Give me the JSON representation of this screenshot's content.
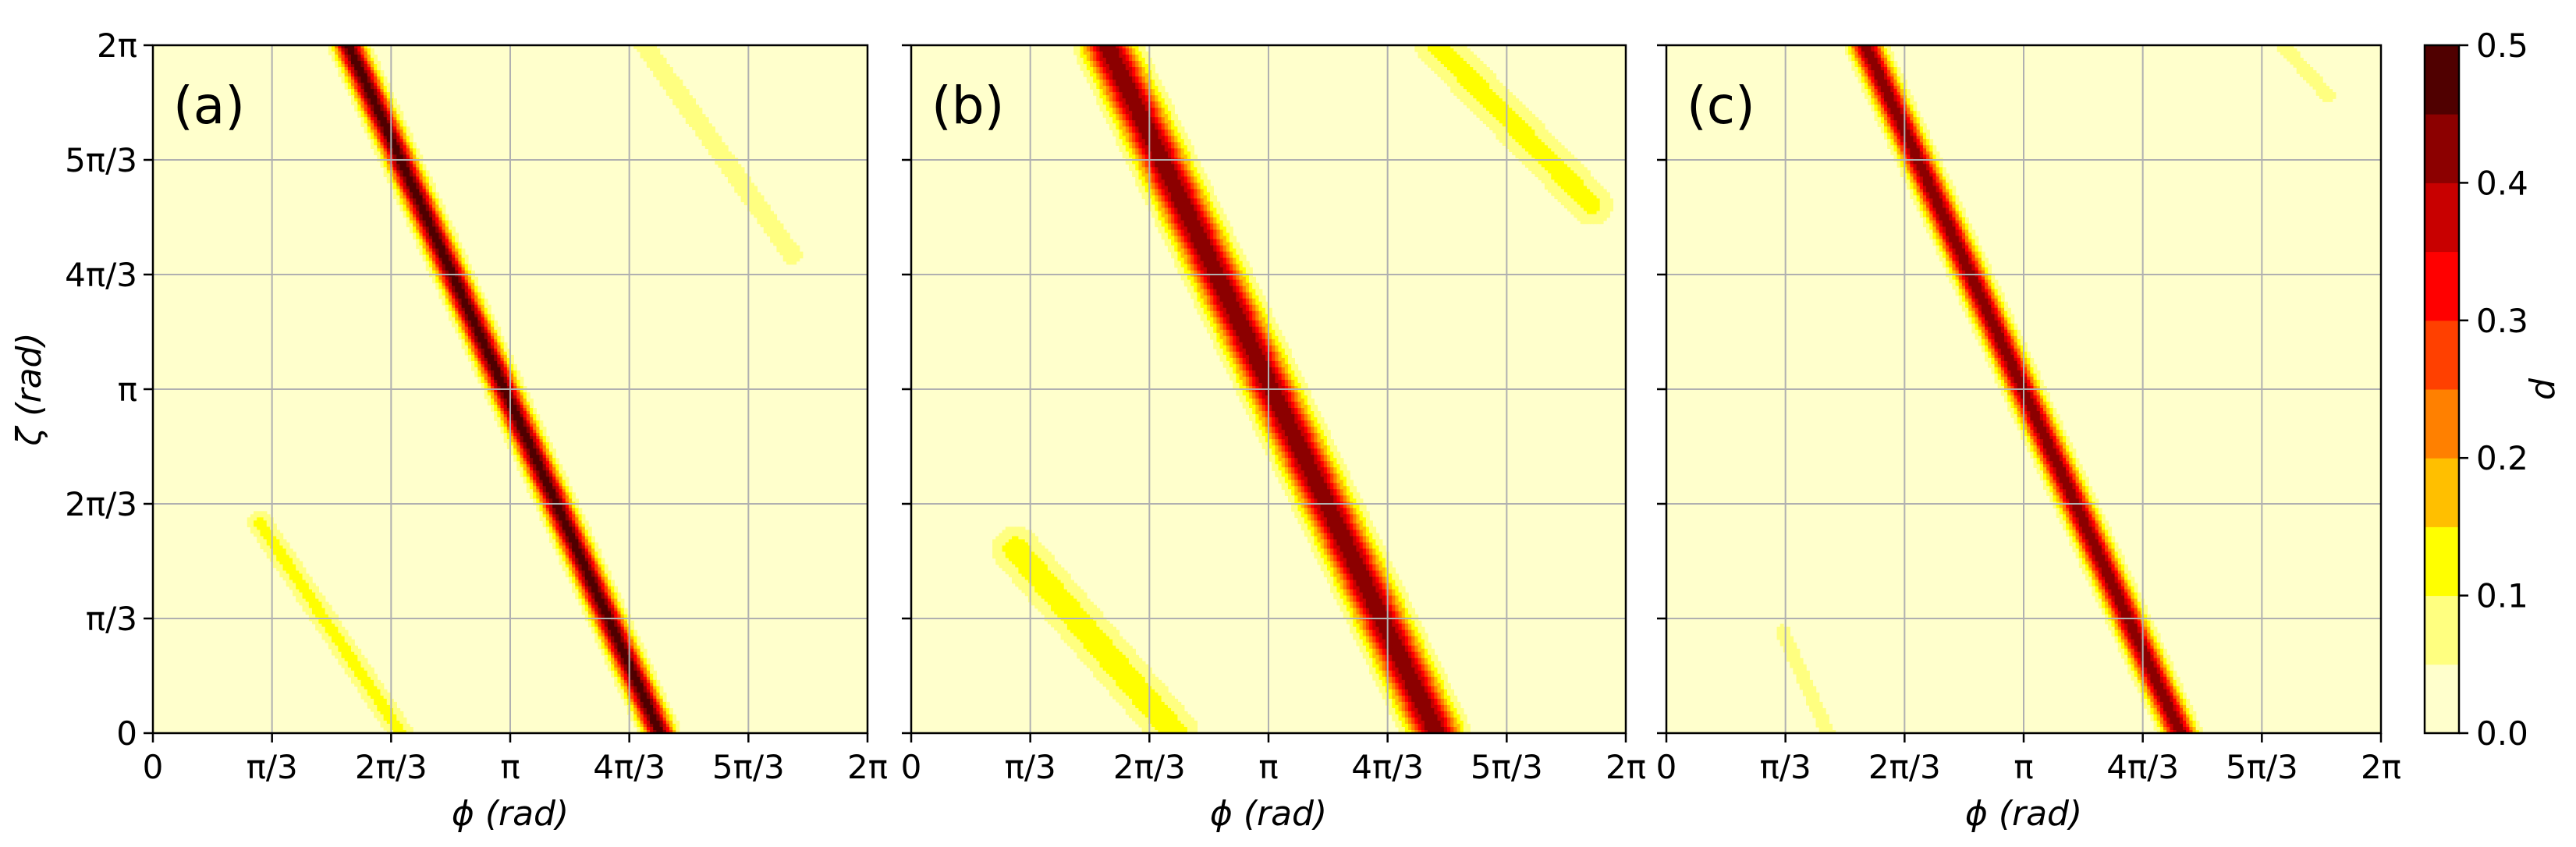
{
  "chart_data": {
    "type": "heatmap",
    "panels": [
      {
        "label": "(a)",
        "xlabel": "ϕ (rad)",
        "ylabel": "ζ (rad)",
        "bands": [
          {
            "from": [
              1.72,
              6.283
            ],
            "to": [
              4.46,
              0.0
            ],
            "peak": 0.48,
            "width": 0.085
          },
          {
            "from": [
              4.32,
              6.283
            ],
            "to": [
              5.62,
              4.37
            ],
            "peak": 0.09,
            "width": 0.075
          },
          {
            "from": [
              0.94,
              1.92
            ],
            "to": [
              2.18,
              0.0
            ],
            "peak": 0.12,
            "width": 0.08
          }
        ]
      },
      {
        "label": "(b)",
        "xlabel": "ϕ (rad)",
        "ylabel": "",
        "bands": [
          {
            "from": [
              1.72,
              6.283
            ],
            "to": [
              4.62,
              0.0
            ],
            "peak": 0.45,
            "width": 0.14
          },
          {
            "from": [
              4.62,
              6.283
            ],
            "to": [
              5.98,
              4.83
            ],
            "peak": 0.12,
            "width": 0.14
          },
          {
            "from": [
              0.92,
              1.68
            ],
            "to": [
              2.32,
              0.0
            ],
            "peak": 0.13,
            "width": 0.15
          }
        ]
      },
      {
        "label": "(c)",
        "xlabel": "ϕ (rad)",
        "ylabel": "",
        "bands": [
          {
            "from": [
              1.75,
              6.283
            ],
            "to": [
              4.52,
              0.0
            ],
            "peak": 0.44,
            "width": 0.09
          },
          {
            "from": [
              5.42,
              6.283
            ],
            "to": [
              5.82,
              5.82
            ],
            "peak": 0.08,
            "width": 0.06
          },
          {
            "from": [
              1.02,
              0.93
            ],
            "to": [
              1.42,
              0.0
            ],
            "peak": 0.08,
            "width": 0.06
          }
        ]
      }
    ],
    "x_range": [
      0,
      6.283185
    ],
    "y_range": [
      0,
      6.283185
    ],
    "x_ticks": [
      "0",
      "π/3",
      "2π/3",
      "π",
      "4π/3",
      "5π/3",
      "2π"
    ],
    "y_ticks": [
      "0",
      "π/3",
      "2π/3",
      "π",
      "4π/3",
      "5π/3",
      "2π"
    ],
    "grid": true,
    "colorbar": {
      "label": "d",
      "range": [
        0,
        0.5
      ],
      "levels": [
        0,
        0.05,
        0.1,
        0.15,
        0.2,
        0.25,
        0.3,
        0.35,
        0.4,
        0.45,
        0.5
      ],
      "colors": [
        "#ffffcc",
        "#ffff80",
        "#ffff00",
        "#ffbf00",
        "#ff8000",
        "#ff4000",
        "#ff0000",
        "#c80000",
        "#8c0000",
        "#500000"
      ],
      "tick_labels": [
        "0.0",
        "0.1",
        "0.2",
        "0.3",
        "0.4",
        "0.5"
      ]
    }
  }
}
